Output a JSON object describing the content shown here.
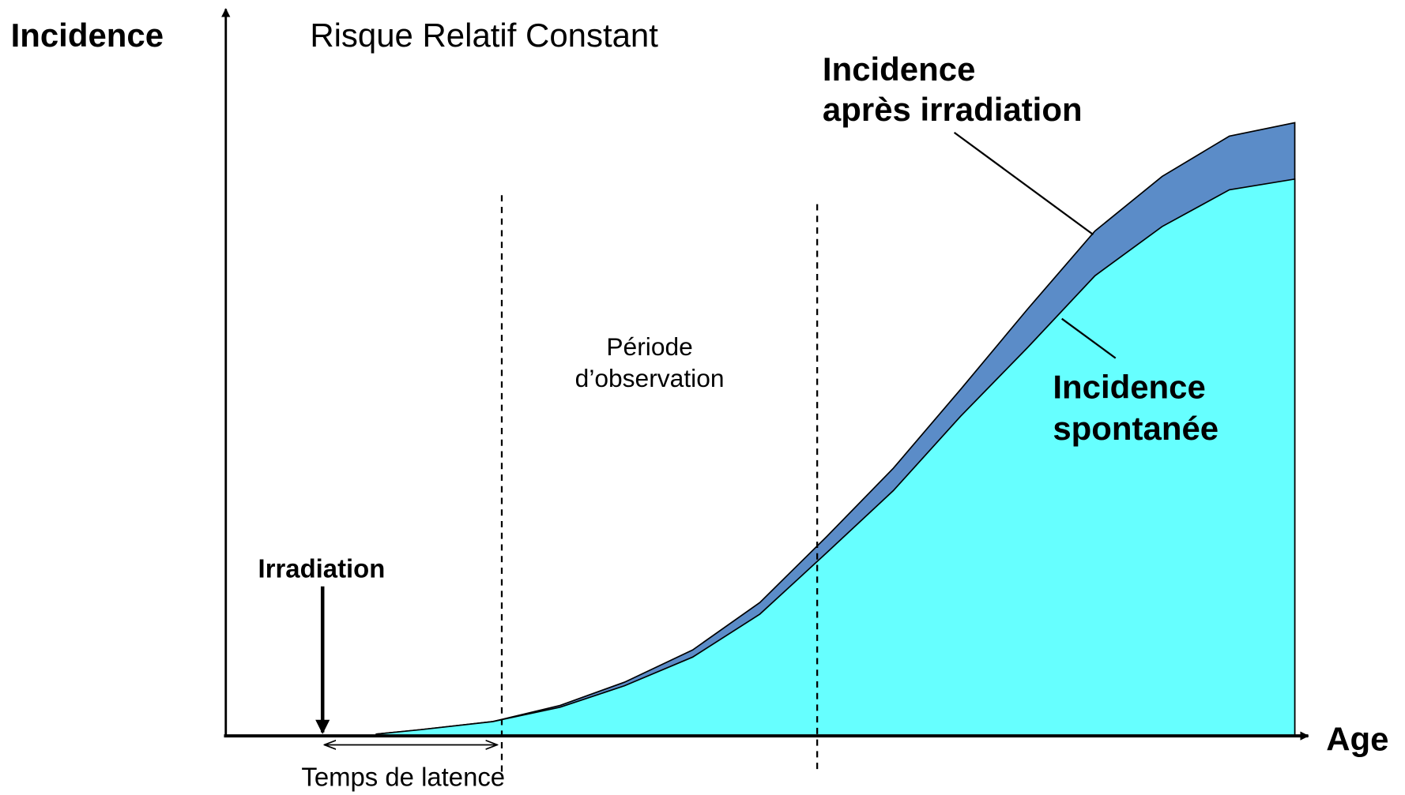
{
  "title": "Risque Relatif Constant",
  "y_axis_label": "Incidence",
  "x_axis_label": "Age",
  "irradiated_label": [
    "Incidence",
    "après irradiation"
  ],
  "observation_label": [
    "Période",
    "d’observation"
  ],
  "spontaneous_label": [
    "Incidence",
    "spontanée"
  ],
  "irradiation_label": "Irradiation",
  "latency_label": "Temps de latence"
}
